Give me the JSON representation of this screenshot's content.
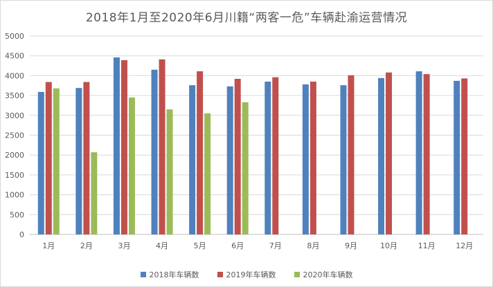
{
  "chart_data": {
    "type": "bar",
    "title": "2018年1月至2020年6月川籍“两客一危”车辆赴渝运营情况",
    "xlabel": "",
    "ylabel": "",
    "categories": [
      "1月",
      "2月",
      "3月",
      "4月",
      "5月",
      "6月",
      "7月",
      "8月",
      "9月",
      "10月",
      "11月",
      "12月"
    ],
    "ylim": [
      0,
      5000
    ],
    "yticks": [
      0,
      500,
      1000,
      1500,
      2000,
      2500,
      3000,
      3500,
      4000,
      4500,
      5000
    ],
    "grid": "horizontal",
    "legend_position": "bottom",
    "series": [
      {
        "name": "2018年车辆数",
        "color": "#4f81bd",
        "values": [
          3590,
          3690,
          4460,
          4150,
          3760,
          3730,
          3850,
          3780,
          3760,
          3940,
          4110,
          3870
        ]
      },
      {
        "name": "2019年车辆数",
        "color": "#c0504d",
        "values": [
          3840,
          3840,
          4390,
          4410,
          4110,
          3920,
          3960,
          3850,
          4010,
          4080,
          4040,
          3930
        ]
      },
      {
        "name": "2020年车辆数",
        "color": "#9bbb59",
        "values": [
          3680,
          2070,
          3450,
          3150,
          3050,
          3330,
          null,
          null,
          null,
          null,
          null,
          null
        ]
      }
    ]
  }
}
